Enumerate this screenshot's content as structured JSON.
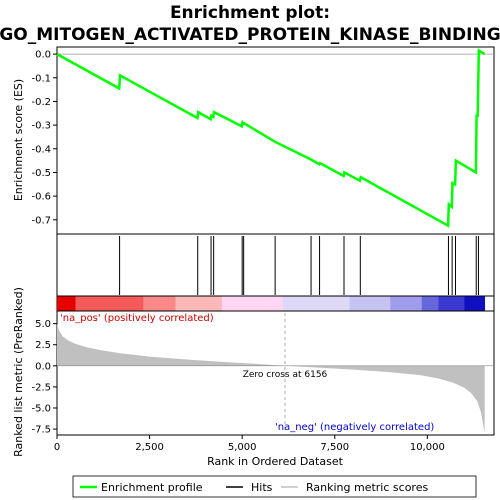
{
  "chart_data": {
    "type": "line",
    "title_line1": "Enrichment plot:",
    "title_line2": "GO_MITOGEN_ACTIVATED_PROTEIN_KINASE_BINDING",
    "xlabel": "Rank in Ordered Dataset",
    "ylabel_top": "Enrichment score (ES)",
    "ylabel_bottom": "Ranked list metric (PreRanked)",
    "xlim": [
      0,
      11800
    ],
    "es_ylim": [
      -0.76,
      0.03
    ],
    "metric_ylim": [
      -8.2,
      6.5
    ],
    "x_ticks": [
      0,
      2500,
      5000,
      7500,
      10000
    ],
    "x_tick_labels": [
      "0",
      "2,500",
      "5,000",
      "7,500",
      "10,000"
    ],
    "es_ticks": [
      0.0,
      -0.1,
      -0.2,
      -0.3,
      -0.4,
      -0.5,
      -0.6,
      -0.7
    ],
    "es_tick_labels": [
      "0.0",
      "-0.1",
      "-0.2",
      "-0.3",
      "-0.4",
      "-0.5",
      "-0.6",
      "-0.7"
    ],
    "metric_ticks": [
      5.0,
      2.5,
      0.0,
      -2.5,
      -5.0,
      -7.5
    ],
    "metric_tick_labels": [
      "5.0",
      "2.5",
      "0.0",
      "-2.5",
      "-5.0",
      "-7.5"
    ],
    "enrichment_profile": {
      "name": "Enrichment profile",
      "color": "#00ff00",
      "points": [
        [
          0,
          0.0
        ],
        [
          1680,
          -0.145
        ],
        [
          1700,
          -0.09
        ],
        [
          3790,
          -0.27
        ],
        [
          3810,
          -0.245
        ],
        [
          4150,
          -0.275
        ],
        [
          4170,
          -0.26
        ],
        [
          4220,
          -0.265
        ],
        [
          4240,
          -0.245
        ],
        [
          4990,
          -0.305
        ],
        [
          5010,
          -0.29
        ],
        [
          5030,
          -0.295
        ],
        [
          5050,
          -0.292
        ],
        [
          5880,
          -0.37
        ],
        [
          6850,
          -0.445
        ],
        [
          7080,
          -0.465
        ],
        [
          7100,
          -0.46
        ],
        [
          7740,
          -0.515
        ],
        [
          7760,
          -0.5
        ],
        [
          8180,
          -0.535
        ],
        [
          8200,
          -0.52
        ],
        [
          10560,
          -0.725
        ],
        [
          10580,
          -0.635
        ],
        [
          10660,
          -0.645
        ],
        [
          10680,
          -0.545
        ],
        [
          10750,
          -0.55
        ],
        [
          10770,
          -0.45
        ],
        [
          11310,
          -0.5
        ],
        [
          11330,
          -0.26
        ],
        [
          11360,
          -0.26
        ],
        [
          11390,
          0.015
        ],
        [
          11550,
          0.0
        ]
      ]
    },
    "hits": {
      "name": "Hits",
      "positions": [
        1690,
        3800,
        4160,
        4230,
        5000,
        5040,
        5890,
        6860,
        7090,
        7750,
        8190,
        10570,
        10670,
        10760,
        11320,
        11380
      ]
    },
    "ranking_metric": {
      "name": "Ranking metric scores",
      "color": "#c0c0c0",
      "points": [
        [
          0,
          5.0
        ],
        [
          50,
          4.2
        ],
        [
          150,
          3.5
        ],
        [
          300,
          3.0
        ],
        [
          500,
          2.6
        ],
        [
          800,
          2.2
        ],
        [
          1200,
          1.85
        ],
        [
          1700,
          1.5
        ],
        [
          2500,
          1.1
        ],
        [
          3500,
          0.75
        ],
        [
          4500,
          0.45
        ],
        [
          5500,
          0.2
        ],
        [
          6156,
          0.0
        ],
        [
          7000,
          -0.2
        ],
        [
          8000,
          -0.45
        ],
        [
          9000,
          -0.75
        ],
        [
          9800,
          -1.1
        ],
        [
          10300,
          -1.5
        ],
        [
          10700,
          -2.0
        ],
        [
          11000,
          -2.6
        ],
        [
          11200,
          -3.3
        ],
        [
          11350,
          -4.2
        ],
        [
          11450,
          -5.5
        ],
        [
          11500,
          -6.8
        ],
        [
          11550,
          -8.0
        ]
      ]
    },
    "zero_cross_label": "Zero cross at 6156",
    "zero_cross_x": 6156,
    "pos_label": "'na_pos' (positively correlated)",
    "neg_label": "'na_neg' (negatively correlated)",
    "heatmap_colors": [
      "#e60000",
      "#f55a5a",
      "#f98888",
      "#fbb8b8",
      "#fcd6f2",
      "#ddd8f6",
      "#c6c2f2",
      "#a09cec",
      "#6666dd",
      "#3a3ad1",
      "#1010c0"
    ],
    "heatmap_breaks": [
      0,
      500,
      2330,
      3200,
      4450,
      6100,
      7900,
      9000,
      9850,
      10300,
      11000,
      11550
    ],
    "legend": [
      {
        "label": "Enrichment profile",
        "color": "#00ff00"
      },
      {
        "label": "Hits",
        "color": "#000000"
      },
      {
        "label": "Ranking metric scores",
        "color": "#c0c0c0"
      }
    ]
  }
}
